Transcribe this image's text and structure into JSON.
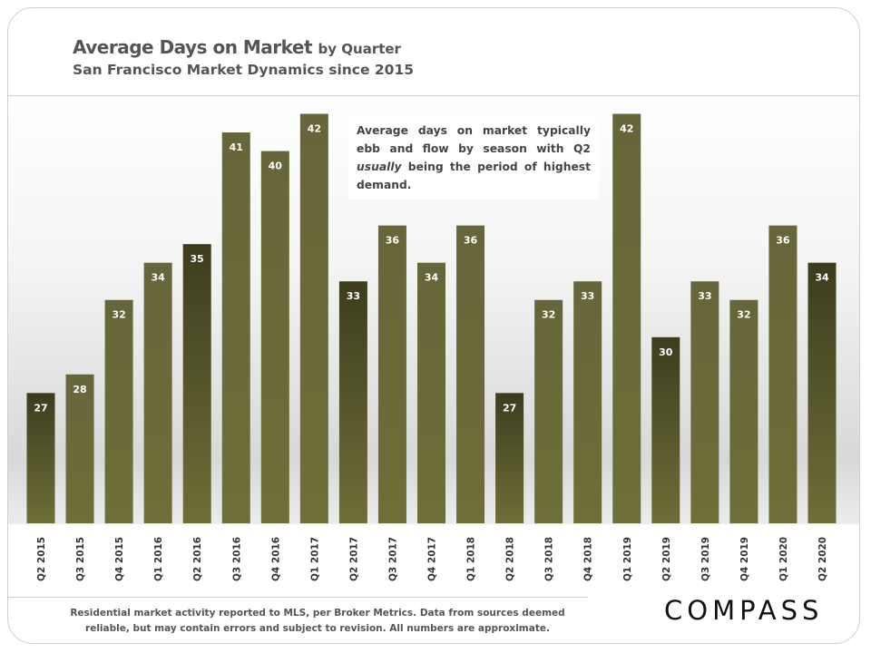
{
  "header": {
    "title": "Average Days on Market",
    "title_suffix": "by Quarter",
    "subtitle": "San Francisco Market Dynamics since 2015"
  },
  "annotation": {
    "text_before": "Average days on market typically ebb and flow by season with Q2 ",
    "text_italic": "usually",
    "text_after": " being the period of highest demand."
  },
  "footer": {
    "line1": "Residential market activity reported to MLS, per Broker Metrics. Data from sources deemed",
    "line2": "reliable, but may contain errors and subject to revision. All numbers are approximate."
  },
  "logo": "COMPASS",
  "colors": {
    "bar": "#66663a",
    "bar_q2_top": "#3d3d1e",
    "bar_bottom": "#6e6e38"
  },
  "chart_data": {
    "type": "bar",
    "title": "Average Days on Market by Quarter",
    "categories": [
      "Q2 2015",
      "Q3 2015",
      "Q4 2015",
      "Q1 2016",
      "Q2 2016",
      "Q3 2016",
      "Q4 2016",
      "Q1 2017",
      "Q2 2017",
      "Q3 2017",
      "Q4 2017",
      "Q1 2018",
      "Q2 2018",
      "Q3 2018",
      "Q4 2018",
      "Q1 2019",
      "Q2 2019",
      "Q3 2019",
      "Q4 2019",
      "Q1 2020",
      "Q2 2020"
    ],
    "values": [
      27,
      28,
      32,
      34,
      35,
      41,
      40,
      42,
      33,
      36,
      34,
      36,
      27,
      32,
      33,
      42,
      30,
      33,
      32,
      36,
      34
    ],
    "highlighted": [
      "Q2 2015",
      "Q2 2016",
      "Q2 2017",
      "Q2 2018",
      "Q2 2019",
      "Q2 2020"
    ],
    "data_labels": true,
    "xlabel": "",
    "ylabel": "",
    "ylim": [
      20,
      43
    ],
    "grid": false,
    "y_axis_visible": false
  }
}
